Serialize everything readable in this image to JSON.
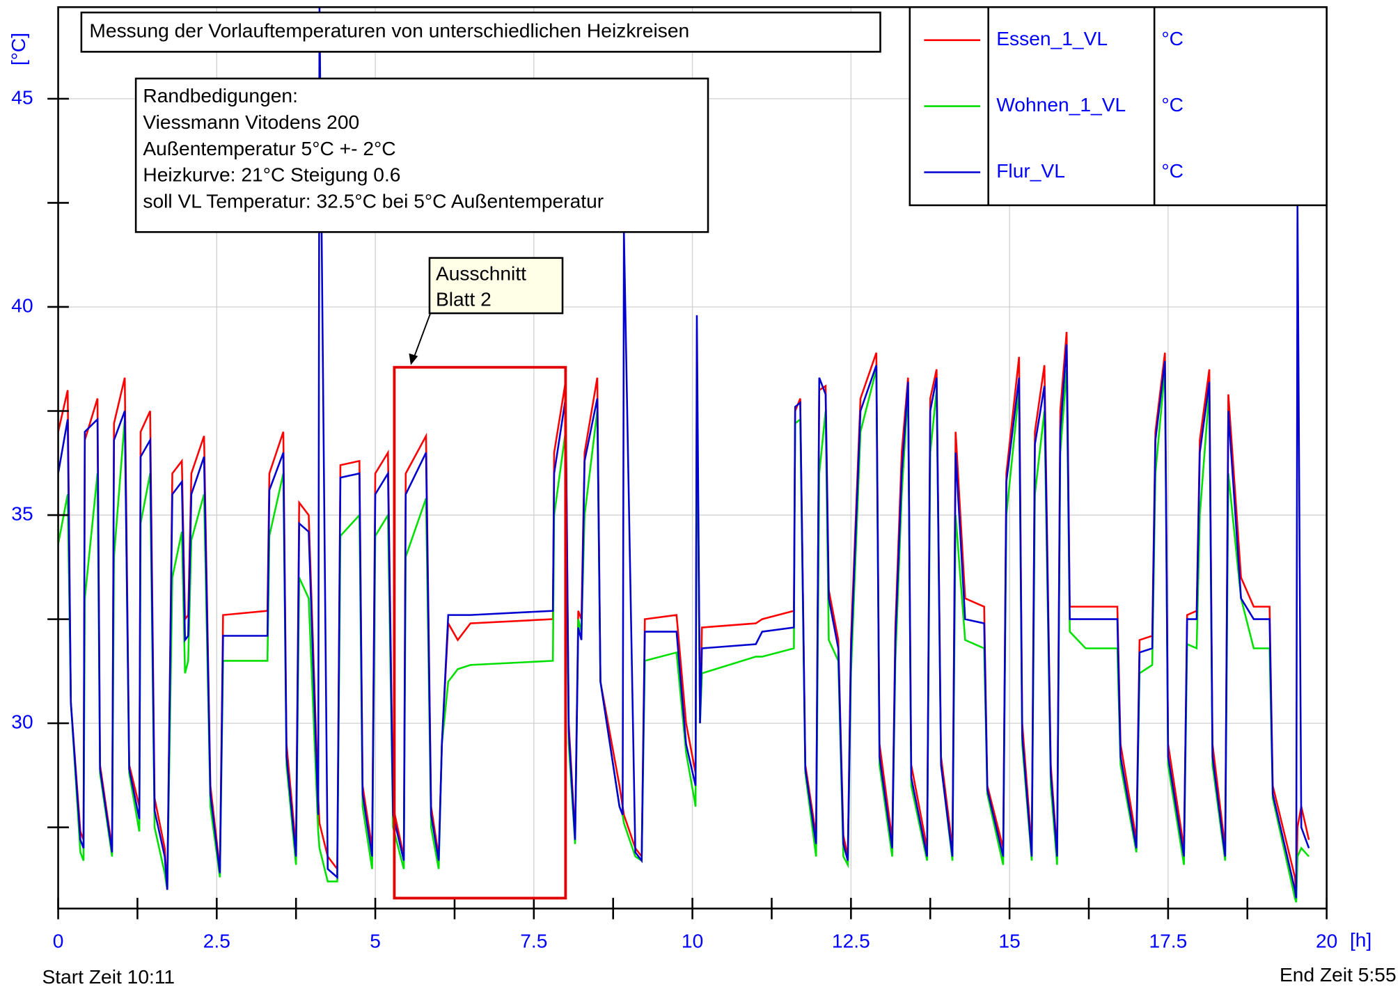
{
  "chart_data": {
    "type": "line",
    "title": "Messung der Vorlauftemperaturen von unterschiedlichen Heizkreisen",
    "note_lines": [
      "Randbedigungen:",
      "Viessmann Vitodens 200",
      "Außentemperatur 5°C +- 2°C",
      "Heizkurve: 21°C Steigung 0.6",
      "soll VL Temperatur: 32.5°C bei 5°C Außentemperatur"
    ],
    "annotation_text": [
      "Ausschnitt",
      "Blatt 2"
    ],
    "highlight": {
      "x": [
        5.3,
        8.0
      ],
      "y": [
        25.8,
        38.55
      ],
      "color": "#e00000"
    },
    "y_label": "[°C]",
    "x_label": "[h]",
    "start_label": "Start Zeit 10:11",
    "end_label": "End Zeit 5:55",
    "xlim": [
      0,
      20
    ],
    "ylim": [
      25.55,
      47.2
    ],
    "xticks": [
      0,
      2.5,
      5,
      7.5,
      10,
      12.5,
      15,
      17.5,
      20
    ],
    "xminor_ticks": [
      1.25,
      3.75,
      6.25,
      8.75,
      11.25,
      13.75,
      16.25,
      18.75
    ],
    "yticks": [
      30,
      35,
      40,
      45
    ],
    "yminor_ticks": [
      27.5,
      32.5,
      37.5,
      42.5
    ],
    "grid": true,
    "x": [
      0.0,
      0.15,
      0.2,
      0.35,
      0.4,
      0.42,
      0.62,
      0.66,
      0.85,
      0.88,
      1.05,
      1.12,
      1.28,
      1.3,
      1.45,
      1.52,
      1.68,
      1.72,
      1.8,
      1.95,
      2.0,
      2.05,
      2.1,
      2.3,
      2.4,
      2.55,
      2.6,
      3.3,
      3.33,
      3.55,
      3.6,
      3.75,
      3.8,
      3.95,
      4.1,
      4.12,
      4.25,
      4.4,
      4.45,
      4.75,
      4.8,
      4.95,
      5.0,
      5.2,
      5.28,
      5.45,
      5.48,
      5.8,
      5.88,
      6.0,
      6.05,
      6.15,
      6.3,
      6.5,
      7.8,
      7.82,
      8.0,
      8.05,
      8.15,
      8.2,
      8.25,
      8.3,
      8.5,
      8.55,
      8.85,
      8.9,
      8.92,
      9.1,
      9.2,
      9.25,
      9.75,
      9.9,
      10.05,
      10.07,
      10.12,
      10.15,
      11.0,
      11.1,
      11.6,
      11.62,
      11.7,
      11.78,
      11.95,
      12.0,
      12.1,
      12.15,
      12.3,
      12.38,
      12.45,
      12.5,
      12.65,
      12.9,
      12.95,
      13.15,
      13.2,
      13.3,
      13.4,
      13.45,
      13.7,
      13.75,
      13.85,
      13.92,
      14.1,
      14.15,
      14.3,
      14.6,
      14.65,
      14.9,
      14.95,
      15.15,
      15.2,
      15.35,
      15.4,
      15.55,
      15.65,
      15.75,
      15.8,
      15.9,
      15.95,
      16.2,
      16.5,
      16.7,
      16.75,
      17.0,
      17.05,
      17.25,
      17.3,
      17.45,
      17.5,
      17.75,
      17.8,
      17.95,
      18.0,
      18.15,
      18.2,
      18.4,
      18.45,
      18.65,
      18.85,
      19.1,
      19.15,
      19.5,
      19.52,
      19.54,
      19.6,
      19.72
    ],
    "series": [
      {
        "name": "Essen_1_VL",
        "unit": "°C",
        "color": "#ff0000",
        "values": [
          37.0,
          38.0,
          30.5,
          27.4,
          27.2,
          36.8,
          37.8,
          29.0,
          27.0,
          37.2,
          38.3,
          29.0,
          28.0,
          37.0,
          37.5,
          28.2,
          27.0,
          26.0,
          36.0,
          36.3,
          32.5,
          32.6,
          36.0,
          36.9,
          28.5,
          26.5,
          32.6,
          32.7,
          36.0,
          37.0,
          29.5,
          27.0,
          35.3,
          35.0,
          28.2,
          27.6,
          26.8,
          26.5,
          36.2,
          36.3,
          28.5,
          27.0,
          36.0,
          36.5,
          28.0,
          26.8,
          36.0,
          36.9,
          28.0,
          26.8,
          29.5,
          32.4,
          32.0,
          32.4,
          32.5,
          36.5,
          38.2,
          30.0,
          27.3,
          32.7,
          32.5,
          36.5,
          38.3,
          31.0,
          28.5,
          28.0,
          27.8,
          27.0,
          26.8,
          32.5,
          32.6,
          30.0,
          28.8,
          38.5,
          30.0,
          32.3,
          32.4,
          32.5,
          32.7,
          37.5,
          37.8,
          29.0,
          27.3,
          38.0,
          38.1,
          33.2,
          32.0,
          27.3,
          26.8,
          32.0,
          37.8,
          38.9,
          29.5,
          27.2,
          32.3,
          36.5,
          38.3,
          29.0,
          27.0,
          37.8,
          38.5,
          29.2,
          27.0,
          37.0,
          33.0,
          32.8,
          28.5,
          27.0,
          36.0,
          38.8,
          30.0,
          27.0,
          37.0,
          38.6,
          29.0,
          26.9,
          37.5,
          39.4,
          32.8,
          32.8,
          32.8,
          32.8,
          29.5,
          27.2,
          32.0,
          32.1,
          37.0,
          38.9,
          29.5,
          27.0,
          32.6,
          32.7,
          36.8,
          38.5,
          29.5,
          27.0,
          37.9,
          33.5,
          32.8,
          32.8,
          28.5,
          26.3,
          25.9,
          27.5,
          28.0,
          27.2
        ]
      },
      {
        "name": "Wohnen_1_VL",
        "unit": "°C",
        "color": "#00e000",
        "values": [
          34.3,
          35.5,
          30.5,
          26.9,
          26.7,
          33.0,
          36.0,
          28.8,
          26.8,
          34.0,
          37.3,
          28.8,
          27.4,
          34.8,
          36.0,
          27.5,
          26.4,
          26.0,
          33.5,
          34.6,
          31.2,
          31.5,
          34.4,
          35.5,
          28.0,
          26.3,
          31.5,
          31.5,
          34.5,
          36.0,
          29.0,
          26.6,
          33.5,
          33.0,
          27.4,
          27.0,
          26.2,
          26.2,
          34.5,
          35.0,
          28.0,
          26.5,
          34.5,
          35.0,
          27.5,
          26.5,
          34.0,
          35.4,
          27.5,
          26.5,
          29.5,
          31.0,
          31.3,
          31.4,
          31.5,
          35.0,
          37.0,
          29.5,
          27.1,
          32.5,
          32.2,
          35.0,
          37.5,
          31.0,
          28.0,
          27.8,
          27.6,
          26.8,
          26.7,
          31.5,
          31.7,
          29.3,
          28.0,
          38.5,
          30.0,
          31.2,
          31.6,
          31.6,
          31.8,
          37.2,
          37.3,
          28.8,
          26.8,
          36.0,
          37.5,
          32.0,
          31.5,
          26.8,
          26.6,
          31.2,
          37.0,
          38.5,
          29.0,
          26.8,
          31.5,
          35.5,
          38.0,
          28.5,
          26.7,
          36.5,
          38.0,
          29.0,
          26.7,
          35.0,
          32.0,
          31.8,
          28.3,
          26.6,
          35.0,
          38.0,
          29.5,
          26.7,
          35.5,
          37.5,
          28.5,
          26.6,
          36.5,
          38.5,
          32.2,
          31.8,
          31.8,
          31.8,
          29.0,
          26.9,
          31.2,
          31.4,
          36.0,
          38.5,
          29.0,
          26.6,
          31.9,
          31.8,
          35.0,
          38.0,
          29.0,
          26.7,
          36.0,
          33.0,
          31.8,
          31.8,
          28.2,
          25.8,
          25.7,
          26.8,
          27.0,
          26.8
        ]
      },
      {
        "name": "Flur_VL",
        "unit": "°C",
        "color": "#0000d0",
        "values": [
          36.0,
          37.3,
          30.5,
          27.2,
          27.0,
          37.0,
          37.3,
          28.9,
          26.9,
          36.8,
          37.5,
          28.9,
          27.7,
          36.4,
          36.8,
          27.9,
          26.8,
          26.0,
          35.5,
          35.8,
          32.0,
          32.1,
          35.5,
          36.4,
          28.3,
          26.4,
          32.1,
          32.1,
          35.6,
          36.5,
          29.2,
          26.8,
          34.8,
          34.6,
          27.8,
          47.2,
          26.5,
          26.3,
          35.9,
          36.0,
          28.3,
          26.8,
          35.5,
          36.0,
          27.8,
          26.7,
          35.5,
          36.5,
          27.8,
          26.7,
          29.5,
          32.6,
          32.6,
          32.6,
          32.7,
          36.0,
          37.8,
          29.8,
          27.2,
          32.3,
          32.0,
          36.3,
          37.8,
          31.0,
          28.0,
          27.8,
          41.8,
          26.9,
          26.7,
          32.2,
          32.2,
          29.5,
          28.5,
          39.8,
          30.0,
          31.8,
          31.9,
          32.2,
          32.3,
          37.6,
          37.7,
          28.9,
          27.1,
          38.3,
          37.9,
          33.0,
          31.8,
          27.1,
          26.7,
          31.7,
          37.5,
          38.6,
          29.2,
          27.0,
          32.0,
          36.0,
          38.2,
          28.7,
          26.8,
          37.5,
          38.3,
          29.0,
          26.8,
          36.5,
          32.5,
          32.4,
          28.4,
          26.8,
          35.8,
          38.3,
          29.7,
          26.8,
          36.7,
          38.1,
          28.8,
          26.8,
          37.0,
          39.1,
          32.5,
          32.5,
          32.5,
          32.5,
          29.2,
          27.0,
          31.7,
          31.8,
          36.8,
          38.7,
          29.2,
          26.8,
          32.5,
          32.5,
          36.5,
          38.2,
          29.2,
          26.8,
          37.5,
          33.0,
          32.5,
          32.5,
          28.3,
          26.0,
          25.8,
          42.5,
          27.5,
          27.0
        ]
      }
    ]
  }
}
